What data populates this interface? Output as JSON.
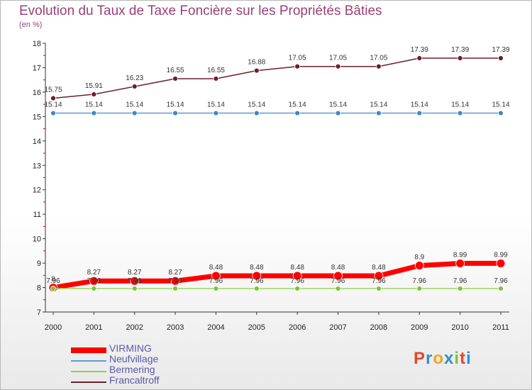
{
  "chart_data": {
    "type": "line",
    "title": "Evolution du Taux de Taxe Foncière sur les Propriétés Bâties",
    "subtitle": "(en %)",
    "x": [
      "2000",
      "2001",
      "2002",
      "2003",
      "2004",
      "2005",
      "2006",
      "2007",
      "2008",
      "2009",
      "2010",
      "2011"
    ],
    "ylim": [
      7,
      18
    ],
    "yticks": [
      7,
      8,
      9,
      10,
      11,
      12,
      13,
      14,
      15,
      16,
      17,
      18
    ],
    "grid": false,
    "legend_position": "bottom-left",
    "series": [
      {
        "name": "VIRMING",
        "color": "#ff0000",
        "values": [
          8,
          8.27,
          8.27,
          8.27,
          8.48,
          8.48,
          8.48,
          8.48,
          8.48,
          8.9,
          8.99,
          8.99
        ],
        "labels": [
          "8",
          "8.27",
          "8.27",
          "8.27",
          "8.48",
          "8.48",
          "8.48",
          "8.48",
          "8.48",
          "8.9",
          "8.99",
          "8.99"
        ]
      },
      {
        "name": "Neufvillage",
        "color": "#5b9bd5",
        "values": [
          15.14,
          15.14,
          15.14,
          15.14,
          15.14,
          15.14,
          15.14,
          15.14,
          15.14,
          15.14,
          15.14,
          15.14
        ],
        "labels": [
          "15.14",
          "15.14",
          "15.14",
          "15.14",
          "15.14",
          "15.14",
          "15.14",
          "15.14",
          "15.14",
          "15.14",
          "15.14",
          "15.14"
        ]
      },
      {
        "name": "Bermering",
        "color": "#8fd14f",
        "values": [
          7.96,
          7.96,
          7.96,
          7.96,
          7.96,
          7.96,
          7.96,
          7.96,
          7.96,
          7.96,
          7.96,
          7.96
        ],
        "labels": [
          "7.96",
          "7.96",
          "7.96",
          "7.96",
          "7.96",
          "7.96",
          "7.96",
          "7.96",
          "7.96",
          "7.96",
          "7.96",
          "7.96"
        ]
      },
      {
        "name": "Francaltroff",
        "color": "#6b1f2a",
        "values": [
          15.75,
          15.91,
          16.23,
          16.55,
          16.55,
          16.88,
          17.05,
          17.05,
          17.05,
          17.39,
          17.39,
          17.39
        ],
        "labels": [
          "15.75",
          "15.91",
          "16.23",
          "16.55",
          "16.55",
          "16.88",
          "17.05",
          "17.05",
          "17.05",
          "17.39",
          "17.39",
          "17.39"
        ]
      }
    ]
  },
  "logo": {
    "text": "Proxiti",
    "colors": [
      "#e8462a",
      "#2e8fd1",
      "#f4a51c",
      "#2e8fd1",
      "#7ac143",
      "#e8462a",
      "#2e8fd1"
    ]
  }
}
